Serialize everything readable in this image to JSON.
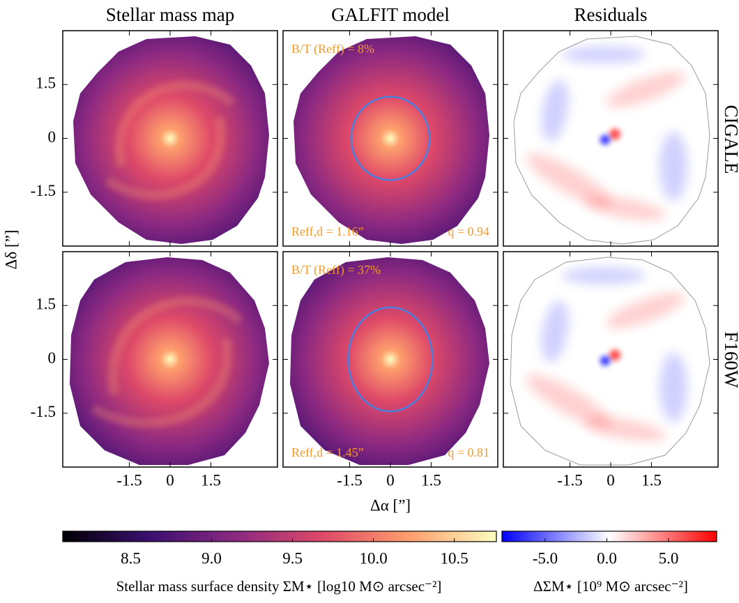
{
  "chart_data": {
    "type": "image-grid",
    "column_titles": [
      "Stellar mass map",
      "GALFIT model",
      "Residuals"
    ],
    "row_labels": [
      "CIGALE",
      "F160W"
    ],
    "xlabel": "Δα [”]",
    "ylabel": "Δδ [”]",
    "xlim": [
      -3.95,
      3.95
    ],
    "ylim": [
      -3,
      3
    ],
    "xticks": [
      -1.5,
      0,
      1.5
    ],
    "yticks": [
      -1.5,
      0,
      1.5
    ],
    "fits": [
      {
        "bt_label": "B/T (Reff) = 8%",
        "reff_label": "Reff,d = 1.16”",
        "q_label": "q = 0.94",
        "reff": 1.16,
        "q": 0.94,
        "ellipse_color": "#4a7fe0"
      },
      {
        "bt_label": "B/T (Reff) = 37%",
        "reff_label": "Reff,d = 1.45”",
        "q_label": "q = 0.81",
        "reff": 1.45,
        "q": 0.81,
        "ellipse_color": "#4a7fe0"
      }
    ],
    "colorbars": [
      {
        "label": "Stellar mass surface density ΣM⋆ [log10 M⊙ arcsec⁻²]",
        "lim": [
          8.08,
          10.76
        ],
        "ticks": [
          8.5,
          {
            "value": 9,
            "label": "9.0"
          },
          9.5,
          {
            "value": 10,
            "label": "10.0"
          },
          10.5
        ],
        "colors": [
          "#000004",
          "#3b0f70",
          "#8c2981",
          "#de4968",
          "#fe9f6d",
          "#fcfdbf"
        ]
      },
      {
        "label": "ΔΣM⋆ [10⁹ M⊙ arcsec⁻²]",
        "lim": [
          -8.5,
          8.9
        ],
        "ticks": [
          {
            "value": -5,
            "label": "-5.0"
          },
          {
            "value": 0,
            "label": "0.0"
          },
          {
            "value": 5,
            "label": "5.0"
          }
        ],
        "colors": [
          "#0000ff",
          "#ffffff",
          "#ff0000"
        ]
      }
    ]
  }
}
